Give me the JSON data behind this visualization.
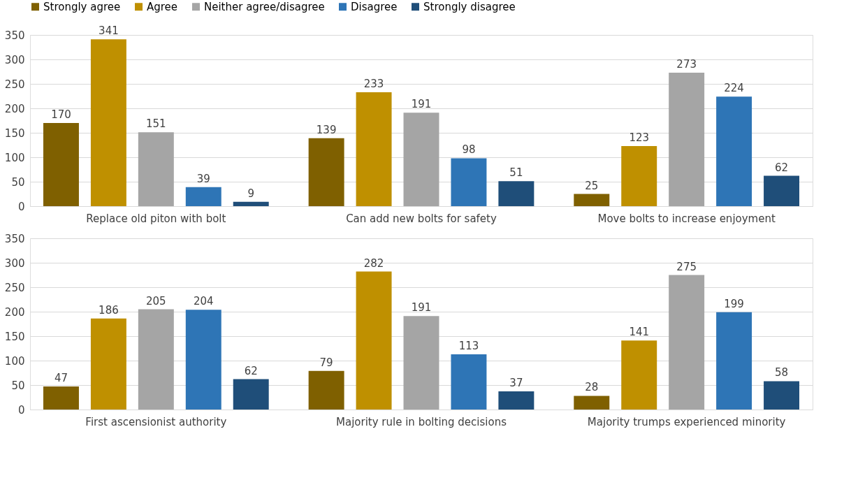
{
  "chart_data": [
    {
      "type": "bar",
      "categories": [
        "Replace old piton with bolt",
        "Can add new bolts for safety",
        "Move bolts to increase enjoyment"
      ],
      "ylim": [
        0,
        350
      ],
      "yticks": [
        0,
        50,
        100,
        150,
        200,
        250,
        300,
        350
      ],
      "grid": "y",
      "legend": "top",
      "data_labels": true,
      "series": [
        {
          "name": "Strongly agree",
          "color": "#7f6000",
          "values": [
            170,
            139,
            25
          ]
        },
        {
          "name": "Agree",
          "color": "#bf9000",
          "values": [
            341,
            233,
            123
          ]
        },
        {
          "name": "Neither agree/disagree",
          "color": "#a5a5a5",
          "values": [
            151,
            191,
            273
          ]
        },
        {
          "name": "Disagree",
          "color": "#2e75b6",
          "values": [
            39,
            98,
            224
          ]
        },
        {
          "name": "Strongly disagree",
          "color": "#1f4e79",
          "values": [
            9,
            51,
            62
          ]
        }
      ]
    },
    {
      "type": "bar",
      "categories": [
        "First ascensionist authority",
        "Majority rule in bolting decisions",
        "Majority trumps experienced minority"
      ],
      "ylim": [
        0,
        350
      ],
      "yticks": [
        0,
        50,
        100,
        150,
        200,
        250,
        300,
        350
      ],
      "grid": "y",
      "legend": false,
      "data_labels": true,
      "series": [
        {
          "name": "Strongly agree",
          "color": "#7f6000",
          "values": [
            47,
            79,
            28
          ]
        },
        {
          "name": "Agree",
          "color": "#bf9000",
          "values": [
            186,
            282,
            141
          ]
        },
        {
          "name": "Neither agree/disagree",
          "color": "#a5a5a5",
          "values": [
            205,
            191,
            275
          ]
        },
        {
          "name": "Disagree",
          "color": "#2e75b6",
          "values": [
            204,
            113,
            199
          ]
        },
        {
          "name": "Strongly disagree",
          "color": "#1f4e79",
          "values": [
            62,
            37,
            58
          ]
        }
      ]
    }
  ]
}
